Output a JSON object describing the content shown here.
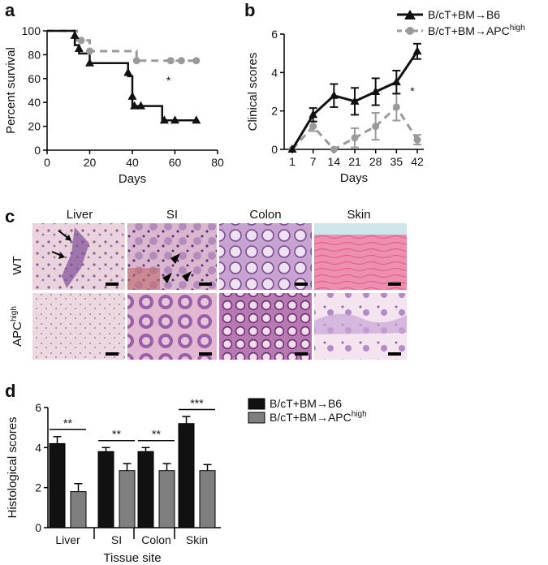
{
  "panels": {
    "a": "a",
    "b": "b",
    "c": "c",
    "d": "d"
  },
  "legend_top": {
    "s1": "B/cT+BM→B6",
    "s2_main": "B/cT+BM→APC",
    "s2_sup": "high"
  },
  "legend_bottom": {
    "s1": "B/cT+BM→B6",
    "s2_main": "B/cT+BM→APC",
    "s2_sup": "high"
  },
  "histology": {
    "columns": [
      "Liver",
      "SI",
      "Colon",
      "Skin"
    ],
    "row1": "WT",
    "row2_main": "APC",
    "row2_sup": "high"
  },
  "colors": {
    "black_series": "#111111",
    "gray_series": "#9a9a9a",
    "bar_gray": "#7f7f7f"
  },
  "chart_data": [
    {
      "type": "line",
      "panel": "a",
      "xlabel": "Days",
      "ylabel": "Percent survival",
      "xlim": [
        0,
        80
      ],
      "ylim": [
        0,
        100
      ],
      "xticks": [
        0,
        20,
        40,
        60,
        80
      ],
      "yticks": [
        0,
        20,
        40,
        60,
        80,
        100
      ],
      "annotation": "*",
      "series": [
        {
          "name": "B/cT+BM→B6",
          "steps": [
            [
              0,
              100
            ],
            [
              13,
              100
            ],
            [
              13,
              88
            ],
            [
              15,
              88
            ],
            [
              15,
              81
            ],
            [
              20,
              81
            ],
            [
              20,
              73
            ],
            [
              38,
              73
            ],
            [
              38,
              62
            ],
            [
              40,
              62
            ],
            [
              40,
              37
            ],
            [
              54,
              37
            ],
            [
              54,
              25
            ],
            [
              70,
              25
            ]
          ],
          "markers": [
            [
              13,
              96
            ],
            [
              15,
              85
            ],
            [
              20,
              73
            ],
            [
              38,
              65
            ],
            [
              40,
              45
            ],
            [
              41,
              37
            ],
            [
              44,
              37
            ],
            [
              55,
              25
            ],
            [
              60,
              25
            ],
            [
              70,
              25
            ]
          ]
        },
        {
          "name": "B/cT+BM→APC high",
          "steps": [
            [
              0,
              100
            ],
            [
              14,
              100
            ],
            [
              14,
              92
            ],
            [
              20,
              92
            ],
            [
              20,
              83
            ],
            [
              42,
              83
            ],
            [
              42,
              75
            ],
            [
              70,
              75
            ]
          ],
          "markers": [
            [
              16,
              92
            ],
            [
              20,
              83
            ],
            [
              42,
              75
            ],
            [
              58,
              75
            ],
            [
              63,
              75
            ],
            [
              70,
              75
            ]
          ]
        }
      ]
    },
    {
      "type": "line",
      "panel": "b",
      "xlabel": "Days",
      "ylabel": "Clinical scores",
      "categories": [
        "1",
        "7",
        "14",
        "21",
        "28",
        "35",
        "42"
      ],
      "ylim": [
        0,
        6
      ],
      "yticks": [
        0,
        2,
        4,
        6
      ],
      "annotation": "*",
      "series": [
        {
          "name": "B/cT+BM→B6",
          "values": [
            0,
            1.8,
            2.8,
            2.5,
            3.0,
            3.5,
            5.1
          ],
          "err": [
            0,
            0.35,
            0.6,
            0.7,
            0.7,
            0.6,
            0.4
          ]
        },
        {
          "name": "B/cT+BM→APC high",
          "values": [
            0,
            1.2,
            0,
            0.6,
            1.2,
            2.2,
            0.5
          ],
          "err": [
            0,
            0.25,
            0,
            0.5,
            0.7,
            0.7,
            0.25
          ]
        }
      ]
    },
    {
      "type": "bar",
      "panel": "d",
      "xlabel": "Tissue site",
      "ylabel": "Histological scores",
      "categories": [
        "Liver",
        "SI",
        "Colon",
        "Skin"
      ],
      "ylim": [
        0,
        6
      ],
      "yticks": [
        0,
        2,
        4,
        6
      ],
      "significance": [
        "**",
        "**",
        "**",
        "***"
      ],
      "series": [
        {
          "name": "B/cT+BM→B6",
          "values": [
            4.2,
            3.8,
            3.8,
            5.2
          ],
          "err": [
            0.35,
            0.2,
            0.2,
            0.35
          ]
        },
        {
          "name": "B/cT+BM→APC high",
          "values": [
            1.8,
            2.85,
            2.85,
            2.85
          ],
          "err": [
            0.4,
            0.35,
            0.35,
            0.3
          ]
        }
      ]
    }
  ]
}
